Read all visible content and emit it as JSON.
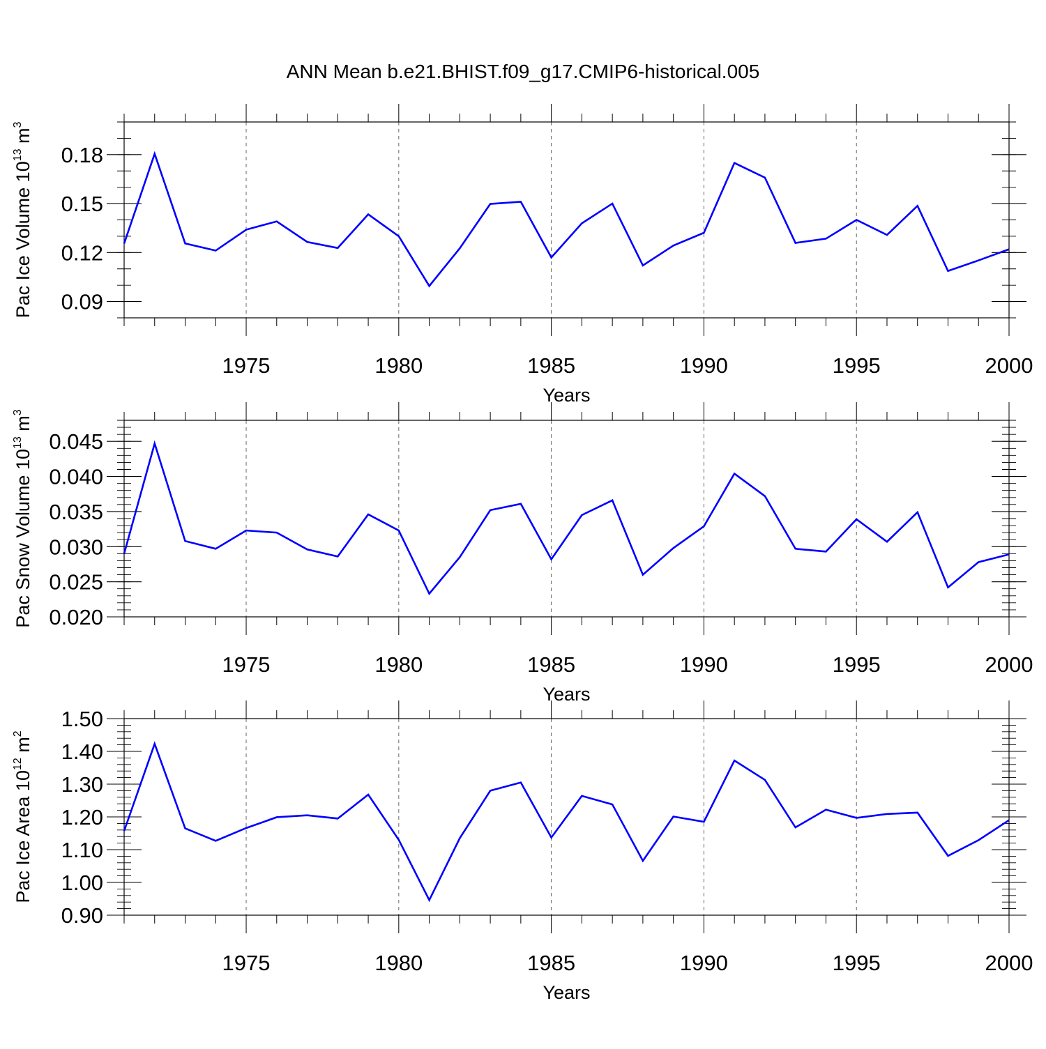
{
  "title": "ANN Mean b.e21.BHIST.f09_g17.CMIP6-historical.005",
  "colors": {
    "line": "#0000ff",
    "axis": "#000000",
    "grid": "#666666"
  },
  "chart_data": [
    {
      "type": "line",
      "ylabel": {
        "main": "Pac Ice Volume 10",
        "exp": "13",
        "unit": " m",
        "unit_exp": "3"
      },
      "xlabel": "Years",
      "xlim": [
        1971,
        2000
      ],
      "ylim": [
        0.08,
        0.2
      ],
      "yticks": [
        "0.09",
        "0.12",
        "0.15",
        "0.18"
      ],
      "xticks": [
        "1975",
        "1980",
        "1985",
        "1990",
        "1995",
        "2000"
      ],
      "grid": "vertical dashed at major x ticks",
      "series": [
        {
          "x": [
            1971,
            1972,
            1973,
            1974,
            1975,
            1976,
            1977,
            1978,
            1979,
            1980,
            1981,
            1982,
            1983,
            1984,
            1985,
            1986,
            1987,
            1988,
            1989,
            1990,
            1991,
            1992,
            1993,
            1994,
            1995,
            1996,
            1997,
            1998,
            1999,
            2000
          ],
          "values": [
            0.1255,
            0.1805,
            0.1256,
            0.1212,
            0.134,
            0.1391,
            0.1265,
            0.1228,
            0.1434,
            0.13,
            0.0995,
            0.1226,
            0.1498,
            0.1511,
            0.117,
            0.1379,
            0.15,
            0.1121,
            0.1243,
            0.1321,
            0.1749,
            0.1659,
            0.1259,
            0.1285,
            0.14,
            0.1308,
            0.1486,
            0.1087,
            0.1152,
            0.122
          ]
        }
      ]
    },
    {
      "type": "line",
      "ylabel": {
        "main": "Pac Snow Volume 10",
        "exp": "13",
        "unit": " m",
        "unit_exp": "3"
      },
      "xlabel": "Years",
      "xlim": [
        1971,
        2000
      ],
      "ylim": [
        0.02,
        0.048
      ],
      "yticks": [
        "0.020",
        "0.025",
        "0.030",
        "0.035",
        "0.040",
        "0.045"
      ],
      "xticks": [
        "1975",
        "1980",
        "1985",
        "1990",
        "1995",
        "2000"
      ],
      "grid": "vertical dashed at major x ticks",
      "series": [
        {
          "x": [
            1971,
            1972,
            1973,
            1974,
            1975,
            1976,
            1977,
            1978,
            1979,
            1980,
            1981,
            1982,
            1983,
            1984,
            1985,
            1986,
            1987,
            1988,
            1989,
            1990,
            1991,
            1992,
            1993,
            1994,
            1995,
            1996,
            1997,
            1998,
            1999,
            2000
          ],
          "values": [
            0.029,
            0.0447,
            0.0308,
            0.0297,
            0.0323,
            0.032,
            0.0296,
            0.0286,
            0.0346,
            0.0323,
            0.0233,
            0.0285,
            0.0352,
            0.0361,
            0.0282,
            0.0345,
            0.0366,
            0.026,
            0.0298,
            0.0329,
            0.0404,
            0.0372,
            0.0297,
            0.0293,
            0.0339,
            0.0307,
            0.0349,
            0.0242,
            0.0278,
            0.0289
          ]
        }
      ]
    },
    {
      "type": "line",
      "ylabel": {
        "main": "Pac Ice Area 10",
        "exp": "12",
        "unit": " m",
        "unit_exp": "2"
      },
      "xlabel": "Years",
      "xlim": [
        1971,
        2000
      ],
      "ylim": [
        0.9,
        1.5
      ],
      "yticks": [
        "0.90",
        "1.00",
        "1.10",
        "1.20",
        "1.30",
        "1.40",
        "1.50"
      ],
      "xticks": [
        "1975",
        "1980",
        "1985",
        "1990",
        "1995",
        "2000"
      ],
      "grid": "vertical dashed at major x ticks",
      "series": [
        {
          "x": [
            1971,
            1972,
            1973,
            1974,
            1975,
            1976,
            1977,
            1978,
            1979,
            1980,
            1981,
            1982,
            1983,
            1984,
            1985,
            1986,
            1987,
            1988,
            1989,
            1990,
            1991,
            1992,
            1993,
            1994,
            1995,
            1996,
            1997,
            1998,
            1999,
            2000
          ],
          "values": [
            1.157,
            1.423,
            1.165,
            1.127,
            1.166,
            1.199,
            1.205,
            1.195,
            1.268,
            1.13,
            0.946,
            1.135,
            1.28,
            1.305,
            1.137,
            1.264,
            1.238,
            1.066,
            1.201,
            1.185,
            1.372,
            1.313,
            1.168,
            1.222,
            1.197,
            1.209,
            1.213,
            1.081,
            1.129,
            1.19
          ]
        }
      ]
    }
  ]
}
